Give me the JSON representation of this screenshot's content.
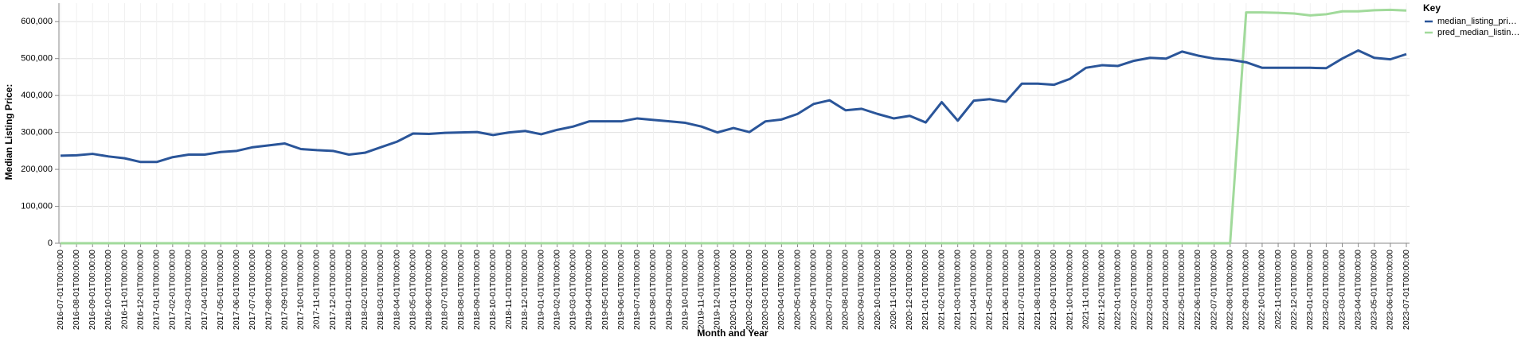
{
  "chart_data": {
    "type": "line",
    "x_label": "Month and Year",
    "y_label": "Median Listing Price:",
    "legend_title": "Key",
    "legend_position": "right",
    "grid": true,
    "categories": [
      "2016-07-01T00:00:00",
      "2016-08-01T00:00:00",
      "2016-09-01T00:00:00",
      "2016-10-01T00:00:00",
      "2016-11-01T00:00:00",
      "2016-12-01T00:00:00",
      "2017-01-01T00:00:00",
      "2017-02-01T00:00:00",
      "2017-03-01T00:00:00",
      "2017-04-01T00:00:00",
      "2017-05-01T00:00:00",
      "2017-06-01T00:00:00",
      "2017-07-01T00:00:00",
      "2017-08-01T00:00:00",
      "2017-09-01T00:00:00",
      "2017-10-01T00:00:00",
      "2017-11-01T00:00:00",
      "2017-12-01T00:00:00",
      "2018-01-01T00:00:00",
      "2018-02-01T00:00:00",
      "2018-03-01T00:00:00",
      "2018-04-01T00:00:00",
      "2018-05-01T00:00:00",
      "2018-06-01T00:00:00",
      "2018-07-01T00:00:00",
      "2018-08-01T00:00:00",
      "2018-09-01T00:00:00",
      "2018-10-01T00:00:00",
      "2018-11-01T00:00:00",
      "2018-12-01T00:00:00",
      "2019-01-01T00:00:00",
      "2019-02-01T00:00:00",
      "2019-03-01T00:00:00",
      "2019-04-01T00:00:00",
      "2019-05-01T00:00:00",
      "2019-06-01T00:00:00",
      "2019-07-01T00:00:00",
      "2019-08-01T00:00:00",
      "2019-09-01T00:00:00",
      "2019-10-01T00:00:00",
      "2019-11-01T00:00:00",
      "2019-12-01T00:00:00",
      "2020-01-01T00:00:00",
      "2020-02-01T00:00:00",
      "2020-03-01T00:00:00",
      "2020-04-01T00:00:00",
      "2020-05-01T00:00:00",
      "2020-06-01T00:00:00",
      "2020-07-01T00:00:00",
      "2020-08-01T00:00:00",
      "2020-09-01T00:00:00",
      "2020-10-01T00:00:00",
      "2020-11-01T00:00:00",
      "2020-12-01T00:00:00",
      "2021-01-01T00:00:00",
      "2021-02-01T00:00:00",
      "2021-03-01T00:00:00",
      "2021-04-01T00:00:00",
      "2021-05-01T00:00:00",
      "2021-06-01T00:00:00",
      "2021-07-01T00:00:00",
      "2021-08-01T00:00:00",
      "2021-09-01T00:00:00",
      "2021-10-01T00:00:00",
      "2021-11-01T00:00:00",
      "2021-12-01T00:00:00",
      "2022-01-01T00:00:00",
      "2022-02-01T00:00:00",
      "2022-03-01T00:00:00",
      "2022-04-01T00:00:00",
      "2022-05-01T00:00:00",
      "2022-06-01T00:00:00",
      "2022-07-01T00:00:00",
      "2022-08-01T00:00:00",
      "2022-09-01T00:00:00",
      "2022-10-01T00:00:00",
      "2022-11-01T00:00:00",
      "2022-12-01T00:00:00",
      "2023-01-01T00:00:00",
      "2023-02-01T00:00:00",
      "2023-03-01T00:00:00",
      "2023-04-01T00:00:00",
      "2023-05-01T00:00:00",
      "2023-06-01T00:00:00",
      "2023-07-01T00:00:00"
    ],
    "series": [
      {
        "name": "median_listing_pri…",
        "color": "#2a5599",
        "values": [
          237000,
          238000,
          242000,
          235000,
          230000,
          220000,
          220000,
          233000,
          240000,
          240000,
          247000,
          250000,
          260000,
          265000,
          270000,
          255000,
          252000,
          250000,
          240000,
          245000,
          260000,
          275000,
          297000,
          296000,
          299000,
          300000,
          301000,
          293000,
          300000,
          304000,
          295000,
          307000,
          316000,
          330000,
          330000,
          330000,
          338000,
          334000,
          330000,
          326000,
          316000,
          300000,
          312000,
          301000,
          330000,
          335000,
          350000,
          377000,
          387000,
          360000,
          364000,
          350000,
          338000,
          345000,
          327000,
          382000,
          332000,
          386000,
          390000,
          383000,
          432000,
          432000,
          429000,
          445000,
          475000,
          482000,
          480000,
          494000,
          502000,
          500000,
          519000,
          508000,
          500000,
          497000,
          490000,
          475000,
          475000,
          475000,
          475000,
          474000,
          500000,
          522000,
          502000,
          498000,
          512000
        ]
      },
      {
        "name": "pred_median_listin…",
        "color": "#a1da9b",
        "values": [
          0,
          0,
          0,
          0,
          0,
          0,
          0,
          0,
          0,
          0,
          0,
          0,
          0,
          0,
          0,
          0,
          0,
          0,
          0,
          0,
          0,
          0,
          0,
          0,
          0,
          0,
          0,
          0,
          0,
          0,
          0,
          0,
          0,
          0,
          0,
          0,
          0,
          0,
          0,
          0,
          0,
          0,
          0,
          0,
          0,
          0,
          0,
          0,
          0,
          0,
          0,
          0,
          0,
          0,
          0,
          0,
          0,
          0,
          0,
          0,
          0,
          0,
          0,
          0,
          0,
          0,
          0,
          0,
          0,
          0,
          0,
          0,
          0,
          0,
          625000,
          625000,
          624000,
          622000,
          617000,
          620000,
          628000,
          628000,
          631000,
          632000,
          630000
        ]
      }
    ],
    "ylim": [
      0,
      650000
    ],
    "yticks": [
      0,
      {
        "value": 100000,
        "label": "100,000"
      },
      {
        "value": 200000,
        "label": "200,000"
      },
      {
        "value": 300000,
        "label": "300,000"
      },
      {
        "value": 400000,
        "label": "400,000"
      },
      {
        "value": 500000,
        "label": "500,000"
      },
      {
        "value": 600000,
        "label": "600,000"
      }
    ]
  }
}
